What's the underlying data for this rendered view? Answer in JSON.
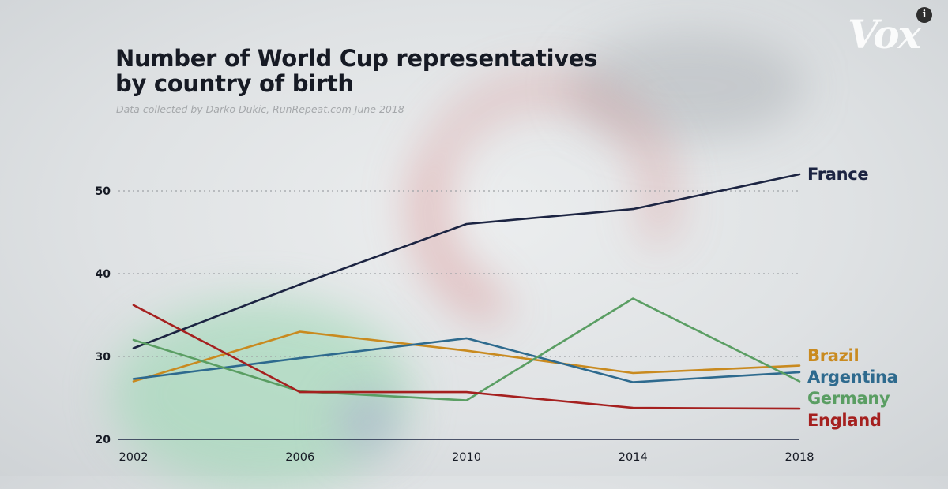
{
  "logo_text": "Vox",
  "info_glyph": "i",
  "chart_data": {
    "type": "line",
    "title_lines": [
      "Number of World Cup representatives",
      "by country of birth"
    ],
    "subtitle": "Data collected by Darko Dukic, RunRepeat.com June 2018",
    "x": [
      2002,
      2006,
      2010,
      2014,
      2018
    ],
    "x_tick_labels": [
      "2002",
      "2006",
      "2010",
      "2014",
      "2018"
    ],
    "y_ticks": [
      20,
      30,
      40,
      50
    ],
    "ylim": [
      20,
      55
    ],
    "grid": "dotted horizontal",
    "legend": "line-end labels at right",
    "series": [
      {
        "name": "France",
        "color": "#1c2442",
        "values": [
          31,
          38.7,
          46,
          47.8,
          52
        ]
      },
      {
        "name": "Brazil",
        "color": "#c98a1f",
        "values": [
          27,
          33,
          30.7,
          28,
          28.9
        ]
      },
      {
        "name": "Argentina",
        "color": "#2e6a8e",
        "values": [
          27.3,
          29.8,
          32.2,
          26.9,
          28.1
        ]
      },
      {
        "name": "Germany",
        "color": "#5a9e63",
        "values": [
          32,
          25.8,
          24.7,
          37,
          27
        ]
      },
      {
        "name": "England",
        "color": "#a5201f",
        "values": [
          36.2,
          25.7,
          25.7,
          23.8,
          23.7
        ]
      }
    ]
  }
}
